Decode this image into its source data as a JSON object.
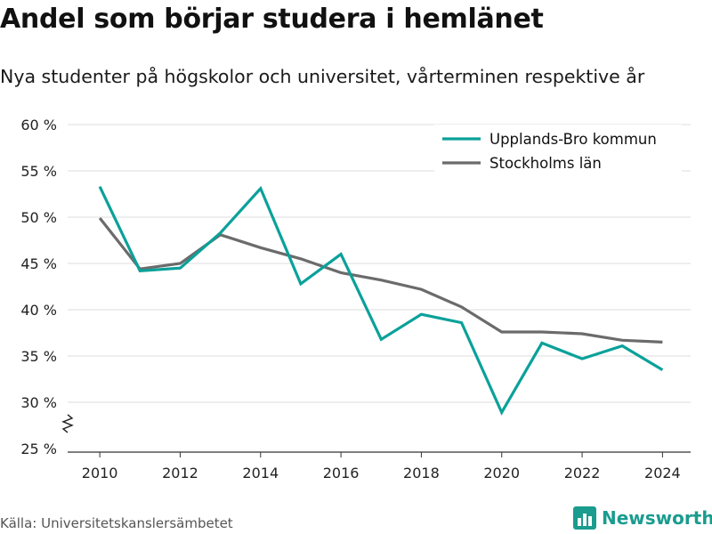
{
  "header": {
    "title": "Andel som börjar studera i hemlänet",
    "subtitle": "Nya studenter på högskolor och universitet, vårterminen respektive år"
  },
  "footer": {
    "source": "Källa: Universitetskanslersämbetet",
    "brand": "Newsworthy",
    "brand_icon": "bar-chart-logo-icon"
  },
  "colors": {
    "upplands_bro": "#0aa19a",
    "stockholm": "#6b6b6b",
    "grid": "#dddddd",
    "axis": "#333333",
    "brand": "#1a9c8f"
  },
  "chart_data": {
    "type": "line",
    "title": "Andel som börjar studera i hemlänet",
    "subtitle": "Nya studenter på högskolor och universitet, vårterminen respektive år",
    "x": [
      2010,
      2011,
      2012,
      2013,
      2014,
      2015,
      2016,
      2017,
      2018,
      2019,
      2020,
      2021,
      2022,
      2023,
      2024
    ],
    "xticks": [
      2010,
      2012,
      2014,
      2016,
      2018,
      2020,
      2022,
      2024
    ],
    "yticks": [
      25,
      30,
      35,
      40,
      45,
      50,
      55,
      60
    ],
    "ytick_suffix": " %",
    "ylim": [
      25,
      60
    ],
    "xlim": [
      2009.2,
      2024.7
    ],
    "grid": true,
    "legend_position": "top-right",
    "axis_break": true,
    "series": [
      {
        "name": "Upplands-Bro kommun",
        "color": "#0aa19a",
        "values": [
          53.3,
          44.2,
          44.5,
          48.3,
          53.1,
          42.8,
          46.0,
          36.8,
          39.5,
          38.6,
          28.9,
          36.4,
          34.7,
          36.1,
          33.5
        ]
      },
      {
        "name": "Stockholms län",
        "color": "#6b6b6b",
        "values": [
          49.9,
          44.4,
          45.0,
          48.1,
          46.7,
          45.5,
          44.0,
          43.2,
          42.2,
          40.3,
          37.6,
          37.6,
          37.4,
          36.7,
          36.5
        ]
      }
    ]
  }
}
